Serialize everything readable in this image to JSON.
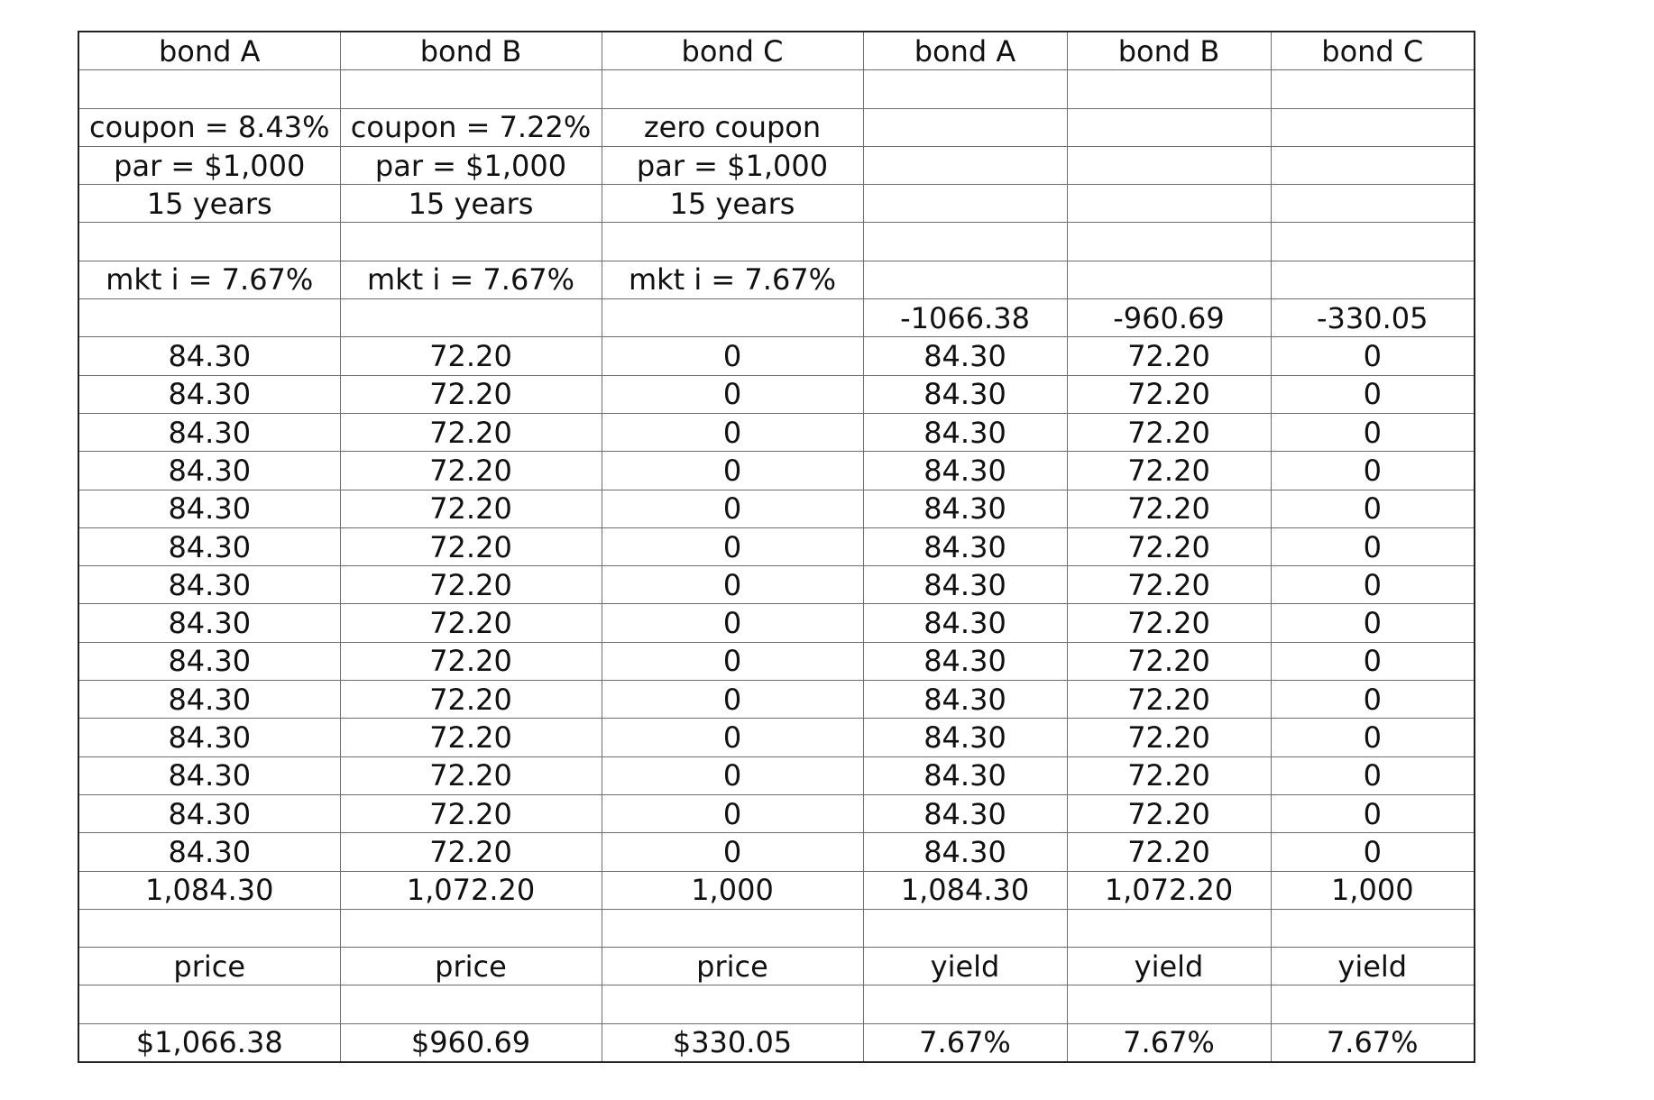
{
  "table": {
    "rows": [
      [
        "bond  A",
        "bond  B",
        "bond  C",
        "bond  A",
        "bond  B",
        "bond  C"
      ],
      [
        "",
        "",
        "",
        "",
        "",
        ""
      ],
      [
        "coupon = 8.43%",
        "coupon = 7.22%",
        "zero coupon",
        "",
        "",
        ""
      ],
      [
        "par = $1,000",
        "par = $1,000",
        "par = $1,000",
        "",
        "",
        ""
      ],
      [
        "15 years",
        "15 years",
        "15 years",
        "",
        "",
        ""
      ],
      [
        "",
        "",
        "",
        "",
        "",
        ""
      ],
      [
        "mkt i = 7.67%",
        "mkt i = 7.67%",
        "mkt i = 7.67%",
        "",
        "",
        ""
      ],
      [
        "",
        "",
        "",
        "-1066.38",
        "-960.69",
        "-330.05"
      ],
      [
        "84.30",
        "72.20",
        "0",
        "84.30",
        "72.20",
        "0"
      ],
      [
        "84.30",
        "72.20",
        "0",
        "84.30",
        "72.20",
        "0"
      ],
      [
        "84.30",
        "72.20",
        "0",
        "84.30",
        "72.20",
        "0"
      ],
      [
        "84.30",
        "72.20",
        "0",
        "84.30",
        "72.20",
        "0"
      ],
      [
        "84.30",
        "72.20",
        "0",
        "84.30",
        "72.20",
        "0"
      ],
      [
        "84.30",
        "72.20",
        "0",
        "84.30",
        "72.20",
        "0"
      ],
      [
        "84.30",
        "72.20",
        "0",
        "84.30",
        "72.20",
        "0"
      ],
      [
        "84.30",
        "72.20",
        "0",
        "84.30",
        "72.20",
        "0"
      ],
      [
        "84.30",
        "72.20",
        "0",
        "84.30",
        "72.20",
        "0"
      ],
      [
        "84.30",
        "72.20",
        "0",
        "84.30",
        "72.20",
        "0"
      ],
      [
        "84.30",
        "72.20",
        "0",
        "84.30",
        "72.20",
        "0"
      ],
      [
        "84.30",
        "72.20",
        "0",
        "84.30",
        "72.20",
        "0"
      ],
      [
        "84.30",
        "72.20",
        "0",
        "84.30",
        "72.20",
        "0"
      ],
      [
        "84.30",
        "72.20",
        "0",
        "84.30",
        "72.20",
        "0"
      ],
      [
        "1,084.30",
        "1,072.20",
        "1,000",
        "1,084.30",
        "1,072.20",
        "1,000"
      ],
      [
        "",
        "",
        "",
        "",
        "",
        ""
      ],
      [
        "price",
        "price",
        "price",
        "yield",
        "yield",
        "yield"
      ],
      [
        "",
        "",
        "",
        "",
        "",
        ""
      ],
      [
        "$1,066.38",
        "$960.69",
        "$330.05",
        "7.67%",
        "7.67%",
        "7.67%"
      ]
    ]
  }
}
